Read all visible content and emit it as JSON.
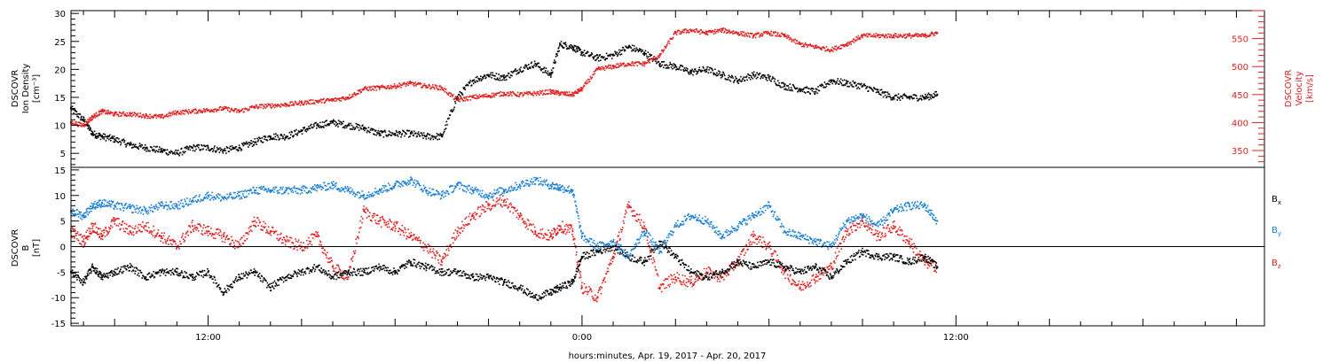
{
  "chart_data": [
    {
      "type": "scatter",
      "panel": "top",
      "xlabel": "hours:minutes, Apr. 19, 2017 - Apr. 20, 2017",
      "x_ticks": [
        "12:00",
        "0:00",
        "12:00"
      ],
      "x_tick_hours": [
        12,
        24,
        36
      ],
      "xlim_hours": [
        7.6,
        45.9
      ],
      "ylabel_lines": [
        "DSCOVR",
        "Ion Density",
        "[cm⁻³]"
      ],
      "ylim": [
        2.5,
        30.5
      ],
      "y_ticks": [
        5,
        10,
        15,
        20,
        25,
        30
      ],
      "right_ylabel_lines": [
        "DSCOVR",
        "Velocity",
        "[km/s]"
      ],
      "right_ylim": [
        320,
        600
      ],
      "right_y_ticks": [
        350,
        400,
        450,
        500,
        550
      ],
      "series": [
        {
          "role": "density",
          "color": "#000000",
          "axis": "left",
          "hours": [
            7.6,
            8.0,
            8.3,
            8.6,
            9.0,
            9.5,
            10.0,
            10.5,
            11.0,
            11.5,
            12.0,
            12.5,
            13.0,
            13.5,
            14.0,
            14.5,
            15.0,
            15.5,
            16.0,
            16.5,
            17.0,
            17.5,
            18.0,
            18.5,
            19.0,
            19.5,
            20.0,
            20.5,
            21.0,
            21.5,
            22.0,
            22.5,
            23.0,
            23.3,
            23.7,
            24.0,
            24.5,
            25.0,
            25.5,
            26.0,
            26.5,
            27.0,
            27.5,
            28.0,
            28.5,
            29.0,
            29.5,
            30.0,
            30.5,
            31.0,
            31.5,
            32.0,
            32.5,
            33.0,
            33.5,
            34.0,
            34.5,
            35.0,
            35.4
          ],
          "values": [
            13,
            11,
            8.5,
            8,
            7.5,
            6.5,
            6,
            5.5,
            5,
            6,
            6,
            5.5,
            6,
            7,
            8,
            8,
            9,
            10,
            10.5,
            10,
            9.5,
            8.5,
            8.5,
            8.5,
            8,
            8,
            15,
            18,
            19,
            18.5,
            20,
            21,
            19,
            24.5,
            24,
            23,
            22,
            22.5,
            24,
            23,
            21,
            20.5,
            19.5,
            20,
            19,
            18,
            19,
            18.5,
            17,
            16.5,
            16,
            18,
            17.5,
            17,
            16,
            15,
            15,
            15,
            15.5
          ]
        },
        {
          "role": "velocity",
          "color": "#e02020",
          "axis": "right",
          "hours": [
            7.6,
            8.0,
            8.3,
            8.6,
            9.0,
            9.5,
            10.0,
            10.5,
            11.0,
            11.5,
            12.0,
            12.5,
            13.0,
            13.5,
            14.0,
            14.5,
            15.0,
            15.5,
            16.0,
            16.5,
            17.0,
            17.5,
            18.0,
            18.5,
            19.0,
            19.5,
            20.0,
            20.5,
            21.0,
            21.5,
            22.0,
            22.5,
            23.0,
            23.3,
            23.7,
            24.0,
            24.5,
            25.0,
            25.5,
            26.0,
            26.5,
            27.0,
            27.5,
            28.0,
            28.5,
            29.0,
            29.5,
            30.0,
            30.5,
            31.0,
            31.5,
            32.0,
            32.5,
            33.0,
            33.5,
            34.0,
            34.5,
            35.0,
            35.4
          ],
          "values": [
            400,
            395,
            410,
            420,
            415,
            415,
            412,
            410,
            418,
            420,
            422,
            425,
            420,
            428,
            430,
            432,
            435,
            438,
            440,
            445,
            460,
            462,
            465,
            470,
            465,
            462,
            440,
            445,
            448,
            452,
            450,
            452,
            455,
            452,
            450,
            460,
            495,
            500,
            505,
            505,
            520,
            560,
            565,
            560,
            565,
            560,
            555,
            560,
            555,
            540,
            535,
            530,
            540,
            555,
            555,
            555,
            555,
            555,
            560
          ]
        }
      ]
    },
    {
      "type": "scatter",
      "panel": "bottom",
      "xlabel": "hours:minutes, Apr. 19, 2017 - Apr. 20, 2017",
      "ylabel_lines": [
        "DSCOVR",
        "B",
        "[nT]"
      ],
      "ylim": [
        -15.5,
        15.5
      ],
      "y_ticks": [
        -15,
        -10,
        -5,
        0,
        5,
        10,
        15
      ],
      "zero_line": true,
      "series": [
        {
          "name": "B",
          "sub": "x",
          "color": "#000000",
          "hours": [
            7.6,
            8.0,
            8.3,
            8.6,
            9.0,
            9.5,
            10.0,
            10.5,
            11.0,
            11.5,
            12.0,
            12.5,
            13.0,
            13.5,
            14.0,
            14.5,
            15.0,
            15.5,
            16.0,
            16.5,
            17.0,
            17.5,
            18.0,
            18.5,
            19.0,
            19.5,
            20.0,
            20.5,
            21.0,
            21.5,
            22.0,
            22.5,
            23.0,
            23.3,
            23.7,
            24.0,
            24.5,
            25.0,
            25.5,
            26.0,
            26.5,
            27.0,
            27.5,
            28.0,
            28.5,
            29.0,
            29.5,
            30.0,
            30.5,
            31.0,
            31.5,
            32.0,
            32.5,
            33.0,
            33.5,
            34.0,
            34.5,
            35.0,
            35.4
          ],
          "values": [
            -5,
            -7,
            -4,
            -6,
            -5,
            -4,
            -6,
            -5,
            -5,
            -6,
            -5,
            -9,
            -6,
            -5,
            -8,
            -6,
            -5,
            -4,
            -6,
            -5,
            -5,
            -4,
            -5,
            -3,
            -4,
            -5,
            -5,
            -6,
            -6,
            -7,
            -8,
            -10,
            -9,
            -8,
            -7,
            -2,
            -1,
            0,
            -2,
            -3,
            1,
            -2,
            -5,
            -6,
            -5,
            -3,
            -4,
            -3,
            -4,
            -5,
            -4,
            -6,
            -3,
            -1,
            -2,
            -2,
            -3,
            -2,
            -4
          ]
        },
        {
          "name": "B",
          "sub": "y",
          "color": "#1a7fd4",
          "hours": [
            7.6,
            8.0,
            8.3,
            8.6,
            9.0,
            9.5,
            10.0,
            10.5,
            11.0,
            11.5,
            12.0,
            12.5,
            13.0,
            13.5,
            14.0,
            14.5,
            15.0,
            15.5,
            16.0,
            16.5,
            17.0,
            17.5,
            18.0,
            18.5,
            19.0,
            19.5,
            20.0,
            20.5,
            21.0,
            21.5,
            22.0,
            22.5,
            23.0,
            23.3,
            23.7,
            24.0,
            24.5,
            25.0,
            25.5,
            26.0,
            26.5,
            27.0,
            27.5,
            28.0,
            28.5,
            29.0,
            29.5,
            30.0,
            30.5,
            31.0,
            31.5,
            32.0,
            32.5,
            33.0,
            33.5,
            34.0,
            34.5,
            35.0,
            35.4
          ],
          "values": [
            7,
            6,
            8,
            8.5,
            8,
            7.5,
            7,
            8,
            8,
            9,
            10,
            9.5,
            10,
            11,
            11,
            11,
            11,
            11.5,
            12,
            11,
            10,
            11,
            12,
            13,
            11,
            10,
            12,
            11,
            10,
            11,
            12,
            13,
            12,
            11.5,
            11,
            2,
            0,
            1,
            -2,
            3,
            -1,
            4,
            6,
            5,
            2,
            4,
            6,
            8,
            3,
            2,
            1,
            0,
            5,
            6,
            4,
            7,
            8,
            8,
            5
          ]
        },
        {
          "name": "B",
          "sub": "z",
          "color": "#e02020",
          "hours": [
            7.6,
            8.0,
            8.3,
            8.6,
            9.0,
            9.5,
            10.0,
            10.5,
            11.0,
            11.5,
            12.0,
            12.5,
            13.0,
            13.5,
            14.0,
            14.5,
            15.0,
            15.5,
            16.0,
            16.5,
            17.0,
            17.5,
            18.0,
            18.5,
            19.0,
            19.5,
            20.0,
            20.5,
            21.0,
            21.5,
            22.0,
            22.5,
            23.0,
            23.3,
            23.7,
            24.0,
            24.5,
            25.0,
            25.5,
            26.0,
            26.5,
            27.0,
            27.5,
            28.0,
            28.5,
            29.0,
            29.5,
            30.0,
            30.5,
            31.0,
            31.5,
            32.0,
            32.5,
            33.0,
            33.5,
            34.0,
            34.5,
            35.0,
            35.4
          ],
          "values": [
            3,
            1,
            4,
            2,
            5,
            3,
            4,
            2,
            0,
            4,
            3,
            2,
            0,
            5,
            3,
            1,
            0,
            2,
            -4,
            -6,
            7,
            5,
            4,
            2,
            0,
            -3,
            3,
            6,
            8,
            9,
            6,
            3,
            2,
            4,
            3,
            -8,
            -10,
            -2,
            8,
            4,
            -8,
            -6,
            -7,
            -5,
            -6,
            -3,
            2,
            0,
            -5,
            -8,
            -6,
            -4,
            3,
            5,
            2,
            4,
            1,
            -3,
            -4
          ]
        }
      ]
    }
  ]
}
